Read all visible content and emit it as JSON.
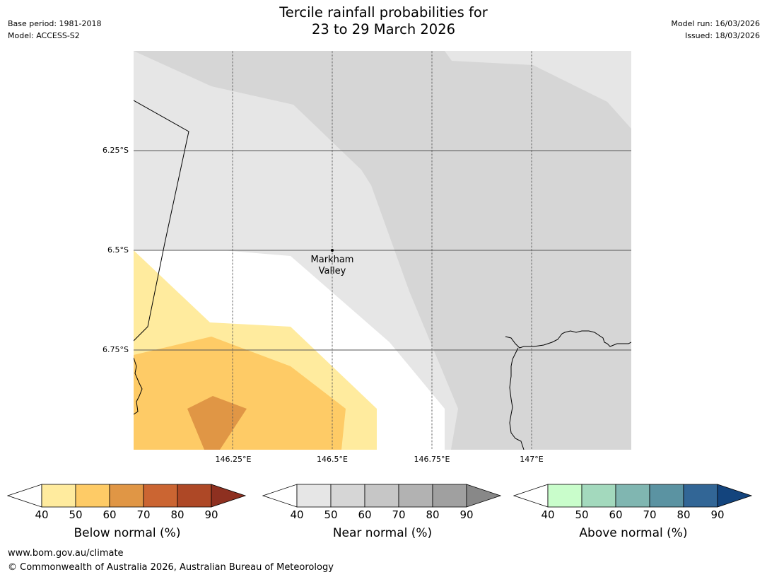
{
  "header": {
    "title_line1": "Tercile rainfall probabilities for",
    "title_line2": "23 to 29 March 2026",
    "base_period": "Base period: 1981-2018",
    "model": "Model: ACCESS-S2",
    "model_run": "Model run: 16/03/2026",
    "issued": "Issued: 18/03/2026"
  },
  "map": {
    "lat_labels": [
      "6.25°S",
      "6.5°S",
      "6.75°S"
    ],
    "lon_labels": [
      "146.25°E",
      "146.5°E",
      "146.75°E",
      "147°E"
    ],
    "place": {
      "name_line1": "Markham",
      "name_line2": "Valley"
    },
    "colors": {
      "near_40": "#e6e6e6",
      "near_50": "#d6d6d6",
      "below_40": "#ffeb9e",
      "below_50": "#fecb66",
      "below_60": "#e09645",
      "white": "#ffffff",
      "grid": "#555555"
    }
  },
  "legend": {
    "ticks": [
      "40",
      "50",
      "60",
      "70",
      "80",
      "90"
    ],
    "below": {
      "label": "Below normal (%)",
      "colors": [
        "#ffeb9e",
        "#fecb66",
        "#e09645",
        "#cb6532",
        "#ae4826",
        "#8e3020"
      ]
    },
    "near": {
      "label": "Near normal (%)",
      "colors": [
        "#e6e6e6",
        "#d6d6d6",
        "#c6c6c6",
        "#b2b2b2",
        "#a0a0a0",
        "#888888"
      ]
    },
    "above": {
      "label": "Above normal (%)",
      "colors": [
        "#c9fdcb",
        "#a3d9bd",
        "#80b6b1",
        "#5b93a2",
        "#326696",
        "#13447d"
      ]
    }
  },
  "footer": {
    "url": "www.bom.gov.au/climate",
    "copyright": "© Commonwealth of Australia 2026, Australian Bureau of Meteorology"
  }
}
